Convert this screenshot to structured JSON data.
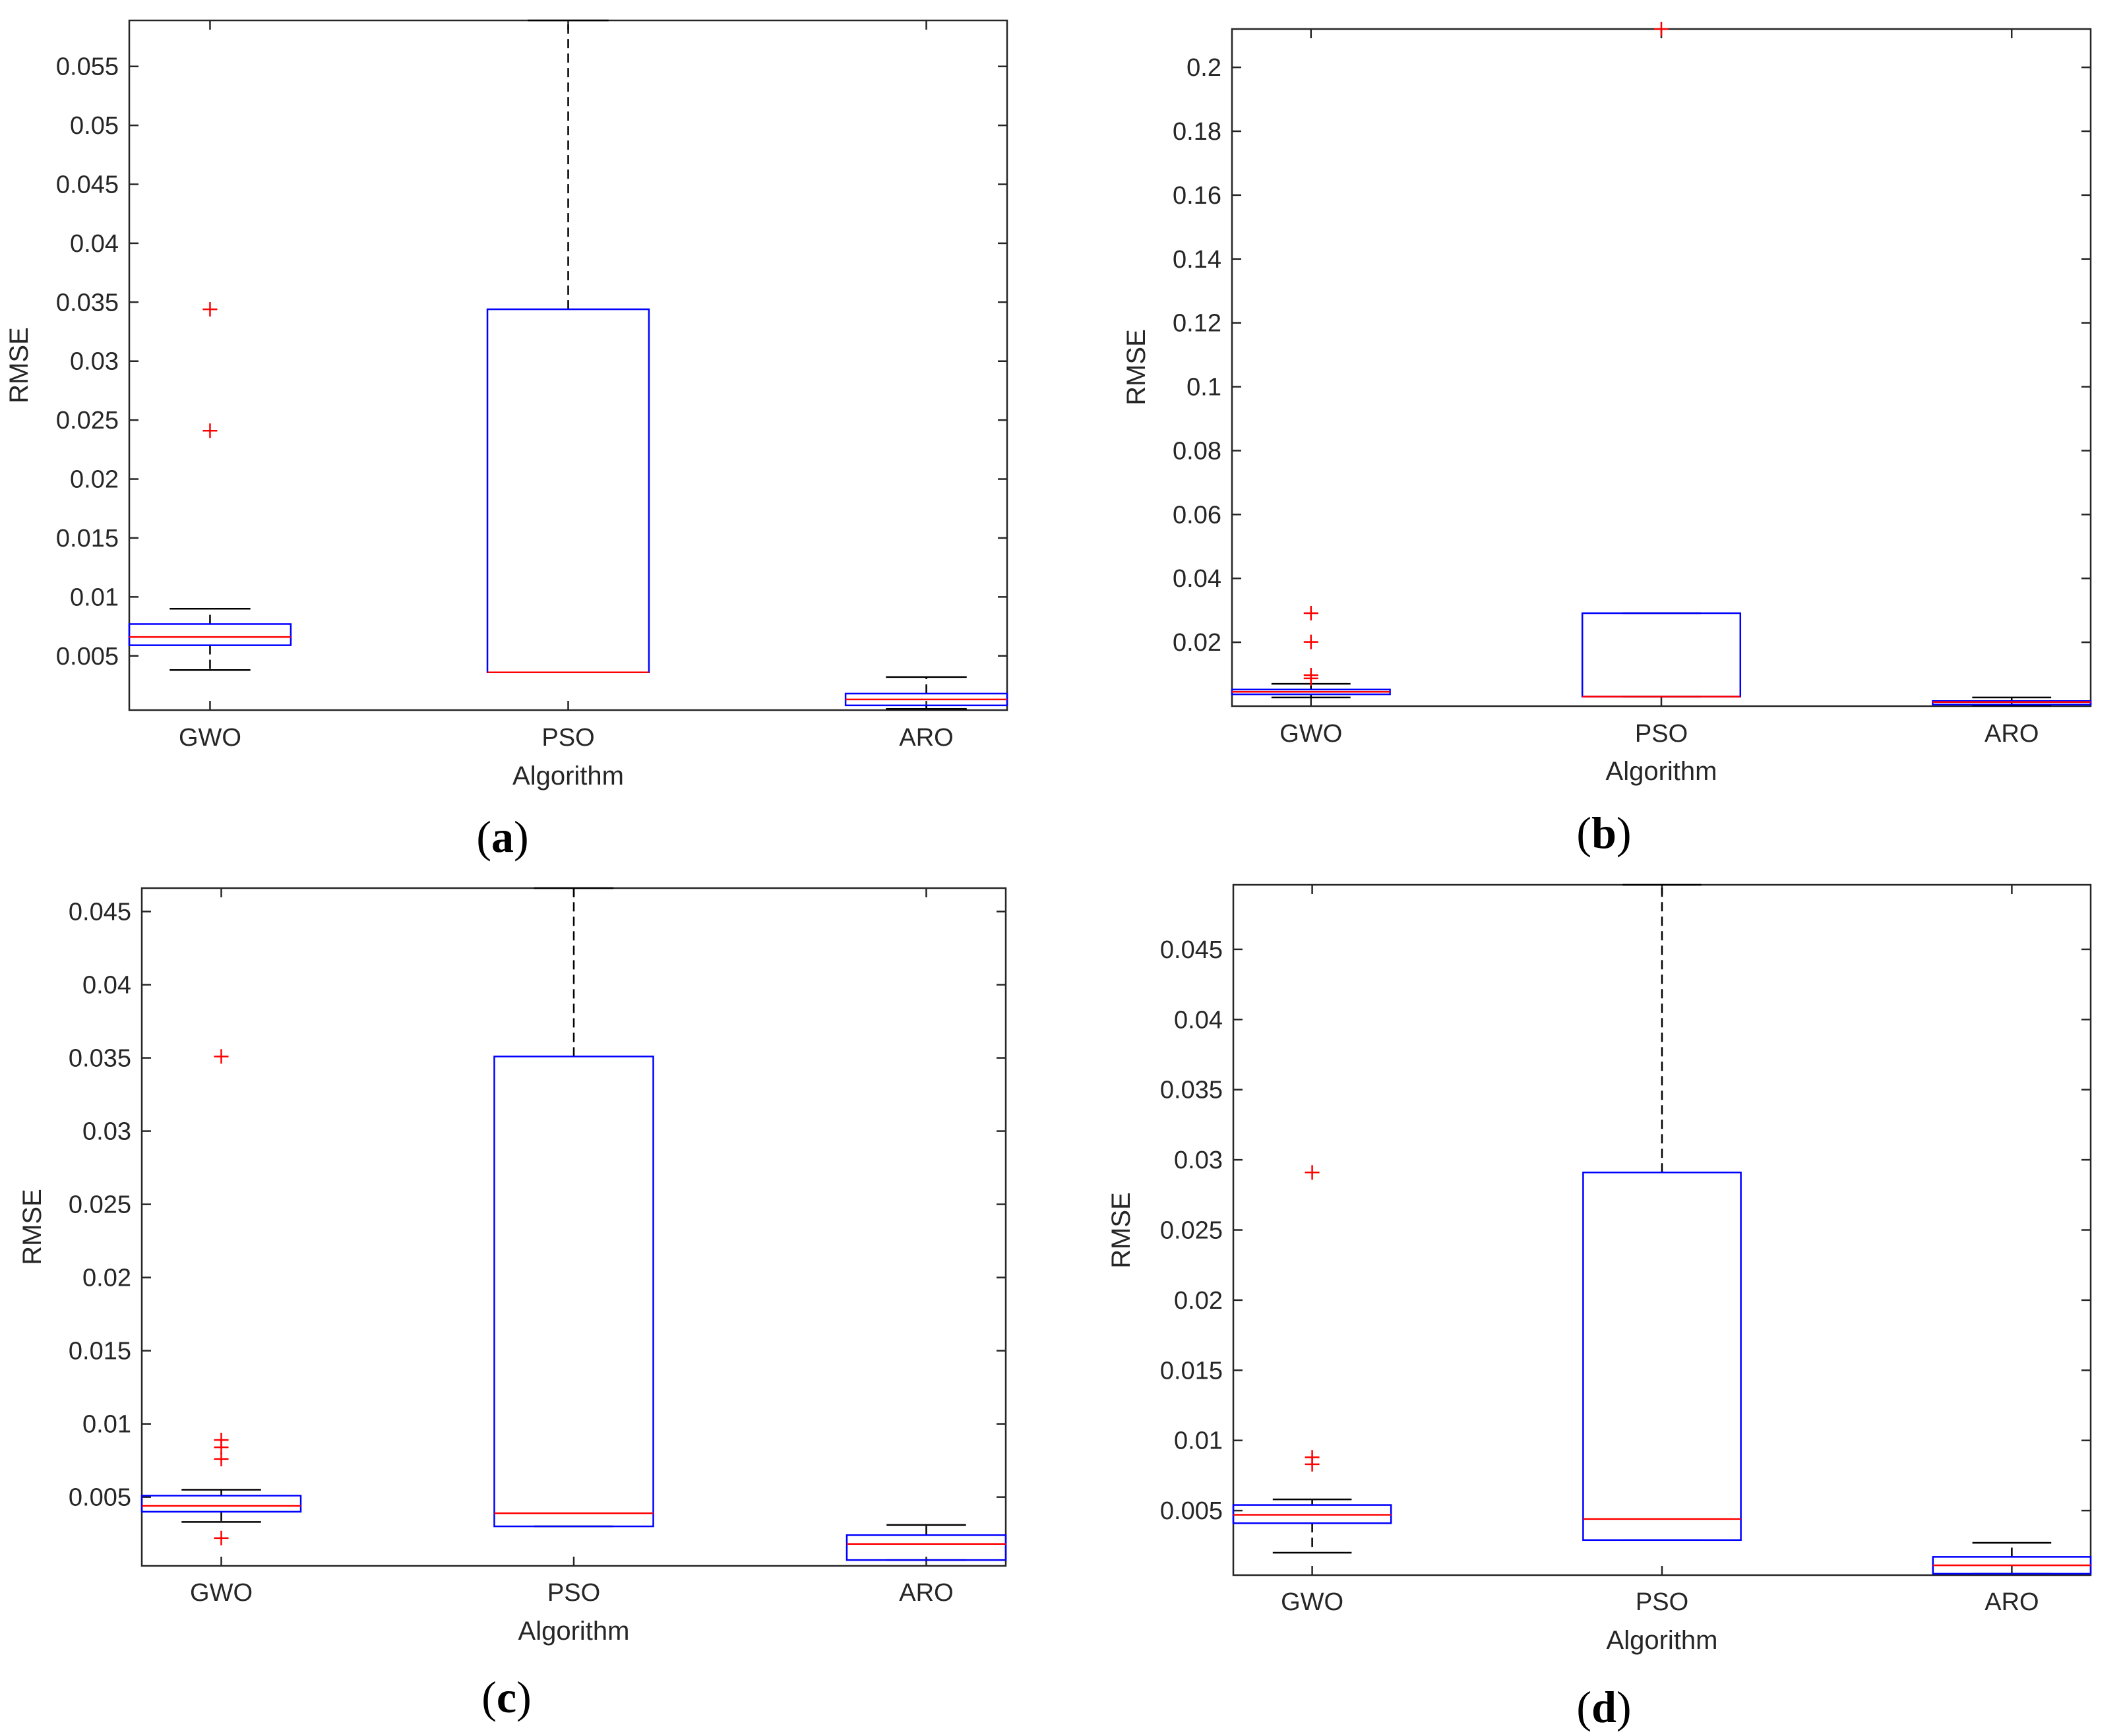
{
  "colors": {
    "box": "#0000ff",
    "median": "#ff0000",
    "whisker": "#000000",
    "outlier": "#ff0000",
    "axes": "#262626"
  },
  "chart_data": [
    {
      "panel": "a",
      "type": "box",
      "xlabel": "Algorithm",
      "ylabel": "RMSE",
      "categories": [
        "GWO",
        "PSO",
        "ARO"
      ],
      "ylim": [
        0.0004,
        0.0589
      ],
      "yticks": [
        0.005,
        0.01,
        0.015,
        0.02,
        0.025,
        0.03,
        0.035,
        0.04,
        0.045,
        0.05,
        0.055
      ],
      "ytick_labels": [
        "0.005",
        "0.01",
        "0.015",
        "0.02",
        "0.025",
        "0.03",
        "0.035",
        "0.04",
        "0.045",
        "0.05",
        "0.055"
      ],
      "series": [
        {
          "name": "GWO",
          "whisker_low": 0.0038,
          "q1": 0.0059,
          "median": 0.0066,
          "q3": 0.0077,
          "whisker_high": 0.009,
          "outliers": [
            0.0344,
            0.0241
          ]
        },
        {
          "name": "PSO",
          "whisker_low": 0.0036,
          "q1": 0.0036,
          "median": 0.0036,
          "q3": 0.0344,
          "whisker_high": 0.0589,
          "outliers": []
        },
        {
          "name": "ARO",
          "whisker_low": 0.0005,
          "q1": 0.0008,
          "median": 0.0013,
          "q3": 0.0018,
          "whisker_high": 0.0032,
          "outliers": []
        }
      ]
    },
    {
      "panel": "b",
      "type": "box",
      "xlabel": "Algorithm",
      "ylabel": "RMSE",
      "categories": [
        "GWO",
        "PSO",
        "ARO"
      ],
      "ylim": [
        0.0,
        0.212
      ],
      "yticks": [
        0.02,
        0.04,
        0.06,
        0.08,
        0.1,
        0.12,
        0.14,
        0.16,
        0.18,
        0.2
      ],
      "ytick_labels": [
        "0.02",
        "0.04",
        "0.06",
        "0.08",
        "0.1",
        "0.12",
        "0.14",
        "0.16",
        "0.18",
        "0.2"
      ],
      "series": [
        {
          "name": "GWO",
          "whisker_low": 0.0027,
          "q1": 0.0037,
          "median": 0.0045,
          "q3": 0.0052,
          "whisker_high": 0.007,
          "outliers": [
            0.0291,
            0.0201,
            0.0097,
            0.0087
          ]
        },
        {
          "name": "PSO",
          "whisker_low": 0.003,
          "q1": 0.003,
          "median": 0.003,
          "q3": 0.0291,
          "whisker_high": 0.0291,
          "outliers": [
            0.212
          ]
        },
        {
          "name": "ARO",
          "whisker_low": 0.0002,
          "q1": 0.0005,
          "median": 0.0013,
          "q3": 0.0016,
          "whisker_high": 0.0027,
          "outliers": []
        }
      ]
    },
    {
      "panel": "c",
      "type": "box",
      "xlabel": "Algorithm",
      "ylabel": "RMSE",
      "categories": [
        "GWO",
        "PSO",
        "ARO"
      ],
      "ylim": [
        0.0003,
        0.0466
      ],
      "yticks": [
        0.005,
        0.01,
        0.015,
        0.02,
        0.025,
        0.03,
        0.035,
        0.04,
        0.045
      ],
      "ytick_labels": [
        "0.005",
        "0.01",
        "0.015",
        "0.02",
        "0.025",
        "0.03",
        "0.035",
        "0.04",
        "0.045"
      ],
      "series": [
        {
          "name": "GWO",
          "whisker_low": 0.0033,
          "q1": 0.004,
          "median": 0.0044,
          "q3": 0.0051,
          "whisker_high": 0.0055,
          "outliers": [
            0.0351,
            0.0089,
            0.0084,
            0.0076,
            0.0022
          ]
        },
        {
          "name": "PSO",
          "whisker_low": 0.003,
          "q1": 0.003,
          "median": 0.0039,
          "q3": 0.0351,
          "whisker_high": 0.0466,
          "outliers": []
        },
        {
          "name": "ARO",
          "whisker_low": 0.0007,
          "q1": 0.0007,
          "median": 0.0018,
          "q3": 0.0024,
          "whisker_high": 0.0031,
          "outliers": []
        }
      ]
    },
    {
      "panel": "d",
      "type": "box",
      "xlabel": "Algorithm",
      "ylabel": "RMSE",
      "categories": [
        "GWO",
        "PSO",
        "ARO"
      ],
      "ylim": [
        0.0004,
        0.0496
      ],
      "yticks": [
        0.005,
        0.01,
        0.015,
        0.02,
        0.025,
        0.03,
        0.035,
        0.04,
        0.045
      ],
      "ytick_labels": [
        "0.005",
        "0.01",
        "0.015",
        "0.02",
        "0.025",
        "0.03",
        "0.035",
        "0.04",
        "0.045"
      ],
      "series": [
        {
          "name": "GWO",
          "whisker_low": 0.002,
          "q1": 0.0041,
          "median": 0.0047,
          "q3": 0.0054,
          "whisker_high": 0.0058,
          "outliers": [
            0.0291,
            0.0088,
            0.0083
          ]
        },
        {
          "name": "PSO",
          "whisker_low": 0.0029,
          "q1": 0.0029,
          "median": 0.0044,
          "q3": 0.0291,
          "whisker_high": 0.0496,
          "outliers": []
        },
        {
          "name": "ARO",
          "whisker_low": 0.0005,
          "q1": 0.0005,
          "median": 0.0011,
          "q3": 0.0017,
          "whisker_high": 0.0027,
          "outliers": []
        }
      ]
    }
  ]
}
